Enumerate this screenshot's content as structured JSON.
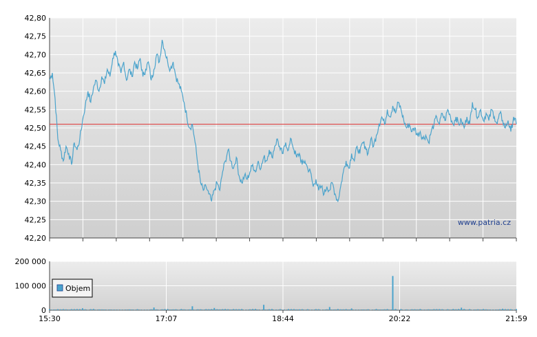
{
  "chart_data": [
    {
      "type": "line",
      "name": "price",
      "ylim": [
        42.2,
        42.8
      ],
      "y_ticks": [
        "42,80",
        "42,75",
        "42,70",
        "42,65",
        "42,60",
        "42,55",
        "42,50",
        "42,45",
        "42,40",
        "42,35",
        "42,30",
        "42,25",
        "42,20"
      ],
      "reference_line": 42.51,
      "reference_color": "#e03030",
      "line_color": "#4aa3cc",
      "grid": true,
      "watermark": "www.patria.cz",
      "points": [
        [
          0,
          42.63
        ],
        [
          1,
          42.65
        ],
        [
          2,
          42.58
        ],
        [
          3,
          42.47
        ],
        [
          4,
          42.44
        ],
        [
          5,
          42.41
        ],
        [
          6,
          42.45
        ],
        [
          7,
          42.43
        ],
        [
          8,
          42.4
        ],
        [
          9,
          42.46
        ],
        [
          10,
          42.44
        ],
        [
          11,
          42.47
        ],
        [
          12,
          42.52
        ],
        [
          13,
          42.56
        ],
        [
          14,
          42.6
        ],
        [
          15,
          42.57
        ],
        [
          16,
          42.61
        ],
        [
          17,
          42.63
        ],
        [
          18,
          42.6
        ],
        [
          19,
          42.64
        ],
        [
          20,
          42.62
        ],
        [
          21,
          42.66
        ],
        [
          22,
          42.64
        ],
        [
          23,
          42.69
        ],
        [
          24,
          42.71
        ],
        [
          25,
          42.67
        ],
        [
          26,
          42.65
        ],
        [
          27,
          42.68
        ],
        [
          28,
          42.63
        ],
        [
          29,
          42.66
        ],
        [
          30,
          42.64
        ],
        [
          31,
          42.68
        ],
        [
          32,
          42.66
        ],
        [
          33,
          42.69
        ],
        [
          34,
          42.64
        ],
        [
          35,
          42.66
        ],
        [
          36,
          42.68
        ],
        [
          37,
          42.63
        ],
        [
          38,
          42.66
        ],
        [
          39,
          42.7
        ],
        [
          40,
          42.68
        ],
        [
          41,
          42.74
        ],
        [
          42,
          42.71
        ],
        [
          43,
          42.68
        ],
        [
          44,
          42.66
        ],
        [
          45,
          42.68
        ],
        [
          46,
          42.64
        ],
        [
          47,
          42.62
        ],
        [
          48,
          42.6
        ],
        [
          49,
          42.57
        ],
        [
          50,
          42.53
        ],
        [
          51,
          42.5
        ],
        [
          52,
          42.51
        ],
        [
          53,
          42.46
        ],
        [
          54,
          42.4
        ],
        [
          55,
          42.35
        ],
        [
          56,
          42.33
        ],
        [
          57,
          42.34
        ],
        [
          58,
          42.32
        ],
        [
          59,
          42.3
        ],
        [
          60,
          42.33
        ],
        [
          61,
          42.35
        ],
        [
          62,
          42.33
        ],
        [
          63,
          42.38
        ],
        [
          64,
          42.41
        ],
        [
          65,
          42.44
        ],
        [
          66,
          42.41
        ],
        [
          67,
          42.39
        ],
        [
          68,
          42.42
        ],
        [
          69,
          42.37
        ],
        [
          70,
          42.35
        ],
        [
          71,
          42.37
        ],
        [
          72,
          42.36
        ],
        [
          73,
          42.38
        ],
        [
          74,
          42.4
        ],
        [
          75,
          42.38
        ],
        [
          76,
          42.41
        ],
        [
          77,
          42.39
        ],
        [
          78,
          42.42
        ],
        [
          79,
          42.41
        ],
        [
          80,
          42.44
        ],
        [
          81,
          42.42
        ],
        [
          82,
          42.45
        ],
        [
          83,
          42.47
        ],
        [
          84,
          42.44
        ],
        [
          85,
          42.43
        ],
        [
          86,
          42.46
        ],
        [
          87,
          42.44
        ],
        [
          88,
          42.47
        ],
        [
          89,
          42.44
        ],
        [
          90,
          42.42
        ],
        [
          91,
          42.43
        ],
        [
          92,
          42.4
        ],
        [
          93,
          42.41
        ],
        [
          94,
          42.39
        ],
        [
          95,
          42.38
        ],
        [
          96,
          42.34
        ],
        [
          97,
          42.36
        ],
        [
          98,
          42.33
        ],
        [
          99,
          42.34
        ],
        [
          100,
          42.32
        ],
        [
          101,
          42.34
        ],
        [
          102,
          42.33
        ],
        [
          103,
          42.35
        ],
        [
          104,
          42.32
        ],
        [
          105,
          42.3
        ],
        [
          106,
          42.34
        ],
        [
          107,
          42.38
        ],
        [
          108,
          42.41
        ],
        [
          109,
          42.39
        ],
        [
          110,
          42.43
        ],
        [
          111,
          42.41
        ],
        [
          112,
          42.45
        ],
        [
          113,
          42.43
        ],
        [
          114,
          42.46
        ],
        [
          115,
          42.45
        ],
        [
          116,
          42.43
        ],
        [
          117,
          42.47
        ],
        [
          118,
          42.45
        ],
        [
          119,
          42.48
        ],
        [
          120,
          42.51
        ],
        [
          121,
          42.53
        ],
        [
          122,
          42.51
        ],
        [
          123,
          42.55
        ],
        [
          124,
          42.53
        ],
        [
          125,
          42.56
        ],
        [
          126,
          42.54
        ],
        [
          127,
          42.57
        ],
        [
          128,
          42.55
        ],
        [
          129,
          42.52
        ],
        [
          130,
          42.5
        ],
        [
          131,
          42.51
        ],
        [
          132,
          42.49
        ],
        [
          133,
          42.5
        ],
        [
          134,
          42.48
        ],
        [
          135,
          42.49
        ],
        [
          136,
          42.47
        ],
        [
          137,
          42.48
        ],
        [
          138,
          42.46
        ],
        [
          139,
          42.49
        ],
        [
          140,
          42.51
        ],
        [
          141,
          42.53
        ],
        [
          142,
          42.51
        ],
        [
          143,
          42.54
        ],
        [
          144,
          42.52
        ],
        [
          145,
          42.55
        ],
        [
          146,
          42.53
        ],
        [
          147,
          42.51
        ],
        [
          148,
          42.53
        ],
        [
          149,
          42.51
        ],
        [
          150,
          42.52
        ],
        [
          151,
          42.5
        ],
        [
          152,
          42.53
        ],
        [
          153,
          42.51
        ],
        [
          154,
          42.57
        ],
        [
          155,
          42.55
        ],
        [
          156,
          42.53
        ],
        [
          157,
          42.55
        ],
        [
          158,
          42.52
        ],
        [
          159,
          42.54
        ],
        [
          160,
          42.52
        ],
        [
          161,
          42.55
        ],
        [
          162,
          42.53
        ],
        [
          163,
          42.51
        ],
        [
          164,
          42.54
        ],
        [
          165,
          42.52
        ],
        [
          166,
          42.5
        ],
        [
          167,
          42.52
        ],
        [
          168,
          42.49
        ],
        [
          169,
          42.53
        ],
        [
          170,
          42.51
        ]
      ]
    },
    {
      "type": "bar",
      "name": "volume",
      "ylim": [
        0,
        200000
      ],
      "y_ticks": [
        "200 000",
        "100 000",
        "0"
      ],
      "bar_color": "#4aa3cc",
      "legend": "Objem",
      "legend_placement": "left",
      "x_ticks": [
        "15:30",
        "17:07",
        "18:44",
        "20:22",
        "21:59"
      ],
      "spikes": [
        [
          12,
          8000
        ],
        [
          38,
          11000
        ],
        [
          52,
          16000
        ],
        [
          60,
          9000
        ],
        [
          78,
          22000
        ],
        [
          102,
          13000
        ],
        [
          110,
          7000
        ],
        [
          125,
          140000
        ],
        [
          150,
          10000
        ],
        [
          165,
          6000
        ]
      ]
    }
  ]
}
